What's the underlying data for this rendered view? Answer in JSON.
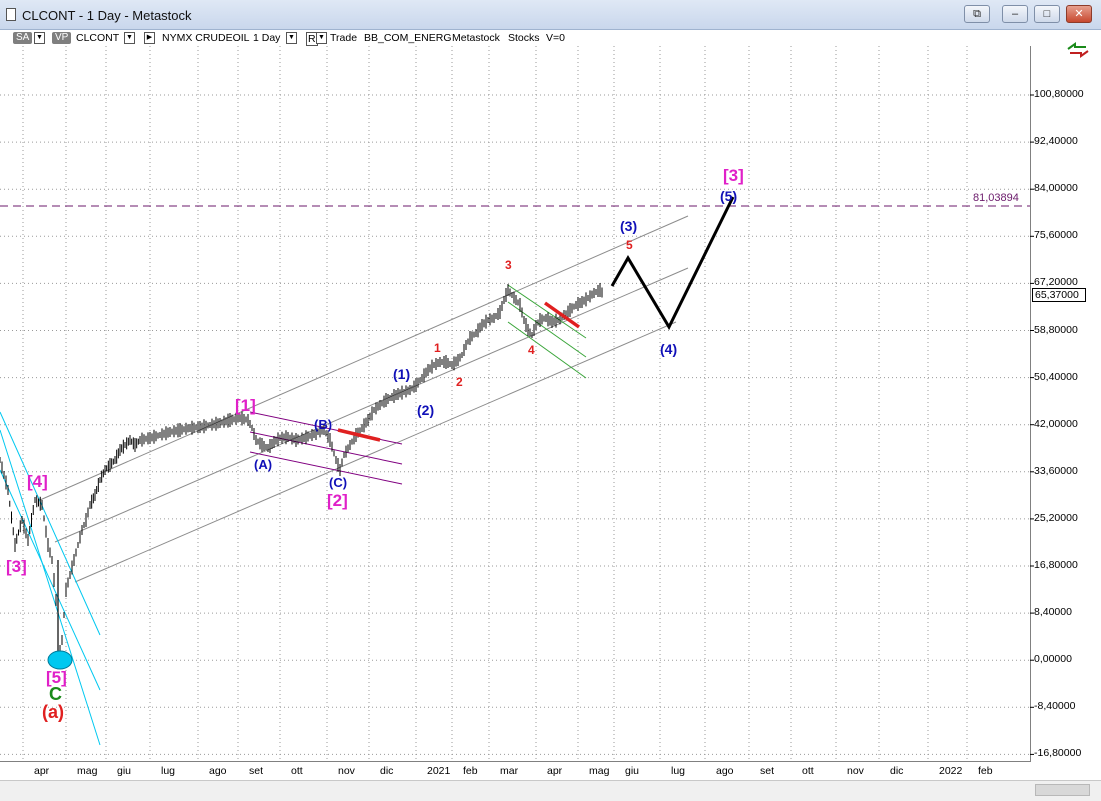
{
  "window": {
    "title": "CLCONT - 1 Day - Metastock",
    "buttons": {
      "restore": "⧉",
      "minimize": "–",
      "maximize": "□",
      "close": "✕"
    }
  },
  "toolbar": {
    "sa": "SA",
    "vp": "VP",
    "symbol": "CLCONT",
    "exchange": "NYMX CRUDEOIL",
    "period": "1 Day",
    "mode_btn": "R",
    "trade": "Trade",
    "sector": "BB_COM_ENERG",
    "source": "Metastock",
    "type": "Stocks",
    "volume": "V=0"
  },
  "chart": {
    "y_ticks": [
      "100,80000",
      "92,40000",
      "84,00000",
      "75,60000",
      "67,20000",
      "58,80000",
      "50,40000",
      "42,00000",
      "33,60000",
      "25,20000",
      "16,80000",
      "8,40000",
      "0,00000",
      "-8,40000",
      "-16,80000"
    ],
    "x_ticks": [
      "apr",
      "mag",
      "giu",
      "lug",
      "ago",
      "set",
      "ott",
      "nov",
      "dic",
      "2021",
      "feb",
      "mar",
      "apr",
      "mag",
      "giu",
      "lug",
      "ago",
      "set",
      "ott",
      "nov",
      "dic",
      "2022",
      "feb"
    ],
    "last_price": "65,37000",
    "level_label": "81,03894",
    "wave_labels": {
      "w3_left": "[3]",
      "w4_left": "[4]",
      "w5_bottom": "[5]",
      "c_green": "C",
      "a_red": "(a)",
      "w1_pink": "[1]",
      "A": "(A)",
      "B": "(B)",
      "C": "(C)",
      "w2_pink": "[2]",
      "b1": "(1)",
      "b2": "(2)",
      "r1": "1",
      "r2": "2",
      "r3": "3",
      "r4": "4",
      "r5": "5",
      "b3": "(3)",
      "b4": "(4)",
      "b5": "(5)",
      "w3_right": "[3]"
    },
    "colors": {
      "magenta": "#e020c8",
      "blue": "#1010b8",
      "red": "#e02020",
      "green": "#1a8a1a",
      "cyan": "#00c8f0",
      "purple": "#6b1a6b",
      "grid": "#9a9a9a",
      "channel": "#8c8c8c"
    }
  }
}
